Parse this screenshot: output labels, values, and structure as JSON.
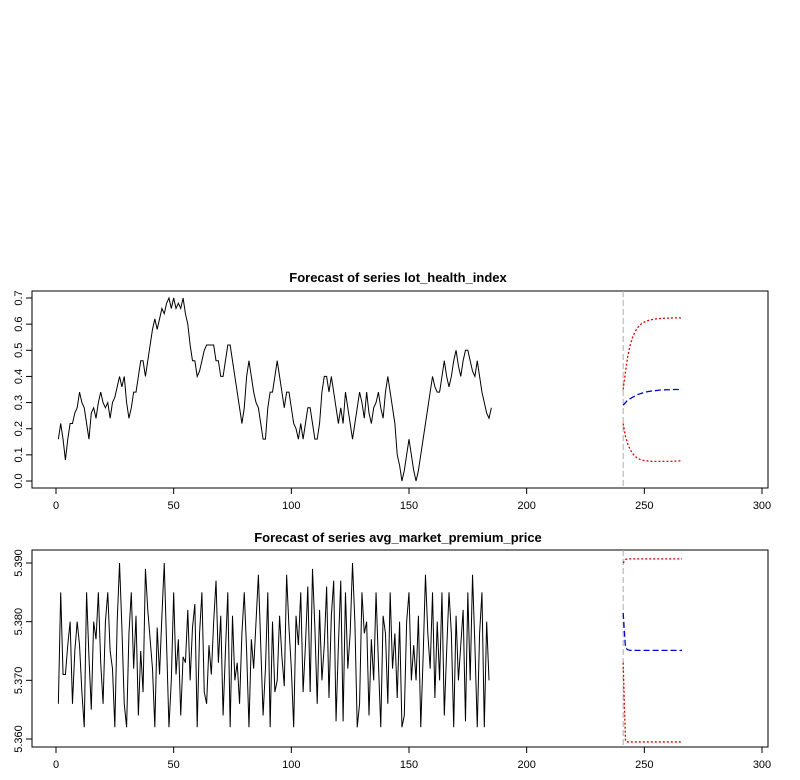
{
  "chart_data": [
    {
      "type": "line",
      "title": "Forecast of series lot_health_index",
      "xlim": [
        0,
        300
      ],
      "ylim": [
        0,
        0.7
      ],
      "x_ticks": [
        0,
        50,
        100,
        150,
        200,
        250,
        300
      ],
      "y_ticks": [
        0.0,
        0.1,
        0.2,
        0.3,
        0.4,
        0.5,
        0.6,
        0.7
      ],
      "y_tick_labels": [
        "0.0",
        "0.1",
        "0.2",
        "0.3",
        "0.4",
        "0.5",
        "0.6",
        "0.7"
      ],
      "forecast_origin": 241,
      "series": [
        {
          "role": "observed",
          "color": "#000000",
          "style": "solid",
          "x_start": 1,
          "values": [
            0.16,
            0.22,
            0.16,
            0.08,
            0.16,
            0.22,
            0.22,
            0.26,
            0.28,
            0.34,
            0.3,
            0.28,
            0.22,
            0.16,
            0.26,
            0.28,
            0.24,
            0.3,
            0.34,
            0.3,
            0.28,
            0.3,
            0.24,
            0.3,
            0.32,
            0.36,
            0.4,
            0.36,
            0.4,
            0.3,
            0.24,
            0.28,
            0.34,
            0.34,
            0.4,
            0.46,
            0.46,
            0.4,
            0.46,
            0.52,
            0.58,
            0.62,
            0.58,
            0.62,
            0.66,
            0.64,
            0.68,
            0.7,
            0.66,
            0.7,
            0.66,
            0.68,
            0.66,
            0.7,
            0.64,
            0.6,
            0.52,
            0.46,
            0.46,
            0.4,
            0.42,
            0.46,
            0.5,
            0.52,
            0.52,
            0.52,
            0.52,
            0.46,
            0.46,
            0.4,
            0.4,
            0.46,
            0.52,
            0.52,
            0.46,
            0.4,
            0.34,
            0.28,
            0.22,
            0.28,
            0.4,
            0.46,
            0.4,
            0.34,
            0.3,
            0.28,
            0.22,
            0.16,
            0.16,
            0.28,
            0.34,
            0.34,
            0.4,
            0.46,
            0.4,
            0.34,
            0.28,
            0.34,
            0.34,
            0.28,
            0.22,
            0.2,
            0.16,
            0.22,
            0.16,
            0.22,
            0.28,
            0.28,
            0.22,
            0.16,
            0.16,
            0.22,
            0.34,
            0.4,
            0.4,
            0.34,
            0.4,
            0.34,
            0.28,
            0.22,
            0.28,
            0.22,
            0.34,
            0.28,
            0.22,
            0.16,
            0.22,
            0.28,
            0.34,
            0.3,
            0.24,
            0.34,
            0.26,
            0.22,
            0.28,
            0.3,
            0.34,
            0.28,
            0.24,
            0.34,
            0.4,
            0.34,
            0.28,
            0.22,
            0.1,
            0.06,
            0.0,
            0.04,
            0.1,
            0.16,
            0.1,
            0.04,
            0.0,
            0.04,
            0.1,
            0.16,
            0.22,
            0.28,
            0.34,
            0.4,
            0.36,
            0.34,
            0.34,
            0.4,
            0.46,
            0.4,
            0.36,
            0.4,
            0.46,
            0.5,
            0.44,
            0.4,
            0.46,
            0.5,
            0.5,
            0.46,
            0.42,
            0.4,
            0.46,
            0.4,
            0.34,
            0.3,
            0.26,
            0.24,
            0.28
          ],
          "note": ""
        },
        {
          "role": "forecast",
          "color": "#0000cc",
          "style": "dashed",
          "x_start": 241,
          "values": [
            0.29,
            0.3,
            0.31,
            0.315,
            0.32,
            0.325,
            0.33,
            0.333,
            0.336,
            0.339,
            0.341,
            0.343,
            0.344,
            0.345,
            0.346,
            0.347,
            0.348,
            0.348,
            0.349,
            0.349,
            0.349,
            0.35,
            0.35,
            0.35,
            0.35,
            0.35
          ]
        },
        {
          "role": "upper_bound",
          "color": "#dd0000",
          "style": "dotted",
          "x_start": 241,
          "values": [
            0.35,
            0.42,
            0.48,
            0.52,
            0.55,
            0.57,
            0.585,
            0.595,
            0.603,
            0.608,
            0.612,
            0.615,
            0.617,
            0.619,
            0.62,
            0.621,
            0.622,
            0.622,
            0.623,
            0.623,
            0.623,
            0.624,
            0.624,
            0.624,
            0.624,
            0.624
          ]
        },
        {
          "role": "lower_bound",
          "color": "#dd0000",
          "style": "dotted",
          "x_start": 241,
          "values": [
            0.22,
            0.17,
            0.14,
            0.12,
            0.105,
            0.095,
            0.088,
            0.083,
            0.08,
            0.078,
            0.077,
            0.076,
            0.075,
            0.075,
            0.075,
            0.075,
            0.075,
            0.075,
            0.075,
            0.075,
            0.075,
            0.075,
            0.076,
            0.076,
            0.077,
            0.078
          ]
        }
      ]
    },
    {
      "type": "line",
      "title": "Forecast of series avg_market_premium_price",
      "xlim": [
        0,
        300
      ],
      "ylim": [
        5.36,
        5.39
      ],
      "x_ticks": [
        0,
        50,
        100,
        150,
        200,
        250,
        300
      ],
      "y_ticks": [
        5.36,
        5.37,
        5.38,
        5.39
      ],
      "y_tick_labels": [
        "5.360",
        "5.370",
        "5.380",
        "5.390"
      ],
      "forecast_origin": 241,
      "series": [
        {
          "role": "observed",
          "color": "#000000",
          "style": "solid",
          "x_start": 1,
          "values": [
            5.366,
            5.385,
            5.371,
            5.371,
            5.376,
            5.38,
            5.366,
            5.375,
            5.38,
            5.376,
            5.368,
            5.362,
            5.385,
            5.374,
            5.365,
            5.38,
            5.377,
            5.385,
            5.373,
            5.366,
            5.38,
            5.385,
            5.375,
            5.372,
            5.362,
            5.38,
            5.39,
            5.379,
            5.366,
            5.362,
            5.378,
            5.385,
            5.372,
            5.381,
            5.364,
            5.375,
            5.368,
            5.389,
            5.382,
            5.377,
            5.372,
            5.362,
            5.379,
            5.371,
            5.381,
            5.39,
            5.376,
            5.362,
            5.37,
            5.385,
            5.371,
            5.377,
            5.364,
            5.374,
            5.373,
            5.382,
            5.37,
            5.379,
            5.383,
            5.362,
            5.378,
            5.385,
            5.368,
            5.366,
            5.376,
            5.371,
            5.38,
            5.387,
            5.373,
            5.381,
            5.364,
            5.375,
            5.385,
            5.362,
            5.381,
            5.37,
            5.373,
            5.366,
            5.378,
            5.385,
            5.375,
            5.362,
            5.377,
            5.372,
            5.38,
            5.388,
            5.376,
            5.364,
            5.372,
            5.385,
            5.362,
            5.38,
            5.368,
            5.37,
            5.381,
            5.374,
            5.369,
            5.388,
            5.379,
            5.372,
            5.362,
            5.381,
            5.376,
            5.385,
            5.368,
            5.376,
            5.386,
            5.368,
            5.389,
            5.379,
            5.366,
            5.382,
            5.37,
            5.376,
            5.386,
            5.367,
            5.381,
            5.387,
            5.363,
            5.376,
            5.387,
            5.363,
            5.385,
            5.372,
            5.378,
            5.39,
            5.38,
            5.362,
            5.366,
            5.385,
            5.378,
            5.38,
            5.364,
            5.377,
            5.37,
            5.385,
            5.373,
            5.362,
            5.381,
            5.378,
            5.366,
            5.385,
            5.372,
            5.378,
            5.367,
            5.38,
            5.362,
            5.364,
            5.38,
            5.385,
            5.37,
            5.376,
            5.37,
            5.381,
            5.362,
            5.374,
            5.388,
            5.378,
            5.372,
            5.385,
            5.367,
            5.38,
            5.37,
            5.385,
            5.364,
            5.375,
            5.385,
            5.378,
            5.362,
            5.381,
            5.37,
            5.376,
            5.382,
            5.363,
            5.385,
            5.37,
            5.388,
            5.376,
            5.362,
            5.378,
            5.385,
            5.362,
            5.38,
            5.37
          ],
          "note": ""
        },
        {
          "role": "forecast",
          "color": "#0000cc",
          "style": "dashed",
          "x_start": 241,
          "values": [
            5.3815,
            5.3755,
            5.3752,
            5.3751,
            5.3751,
            5.3751,
            5.3751,
            5.3751,
            5.3751,
            5.3751,
            5.3751,
            5.3751,
            5.3751,
            5.3751,
            5.3751,
            5.3751,
            5.3751,
            5.3751,
            5.3751,
            5.3751,
            5.3751,
            5.3751,
            5.3751,
            5.3751,
            5.3751,
            5.3751
          ]
        },
        {
          "role": "upper_bound",
          "color": "#dd0000",
          "style": "dotted",
          "x_start": 241,
          "values": [
            5.39,
            5.3906,
            5.3907,
            5.3907,
            5.3907,
            5.3907,
            5.3907,
            5.3907,
            5.3907,
            5.3907,
            5.3907,
            5.3907,
            5.3907,
            5.3907,
            5.3907,
            5.3907,
            5.3907,
            5.3907,
            5.3907,
            5.3907,
            5.3907,
            5.3907,
            5.3907,
            5.3907,
            5.3907,
            5.3907
          ]
        },
        {
          "role": "lower_bound",
          "color": "#dd0000",
          "style": "dotted",
          "x_start": 241,
          "values": [
            5.373,
            5.3596,
            5.3595,
            5.3595,
            5.3595,
            5.3595,
            5.3595,
            5.3595,
            5.3595,
            5.3595,
            5.3595,
            5.3595,
            5.3595,
            5.3595,
            5.3595,
            5.3595,
            5.3595,
            5.3595,
            5.3595,
            5.3595,
            5.3595,
            5.3595,
            5.3595,
            5.3595,
            5.3595,
            5.3595
          ]
        }
      ]
    }
  ]
}
